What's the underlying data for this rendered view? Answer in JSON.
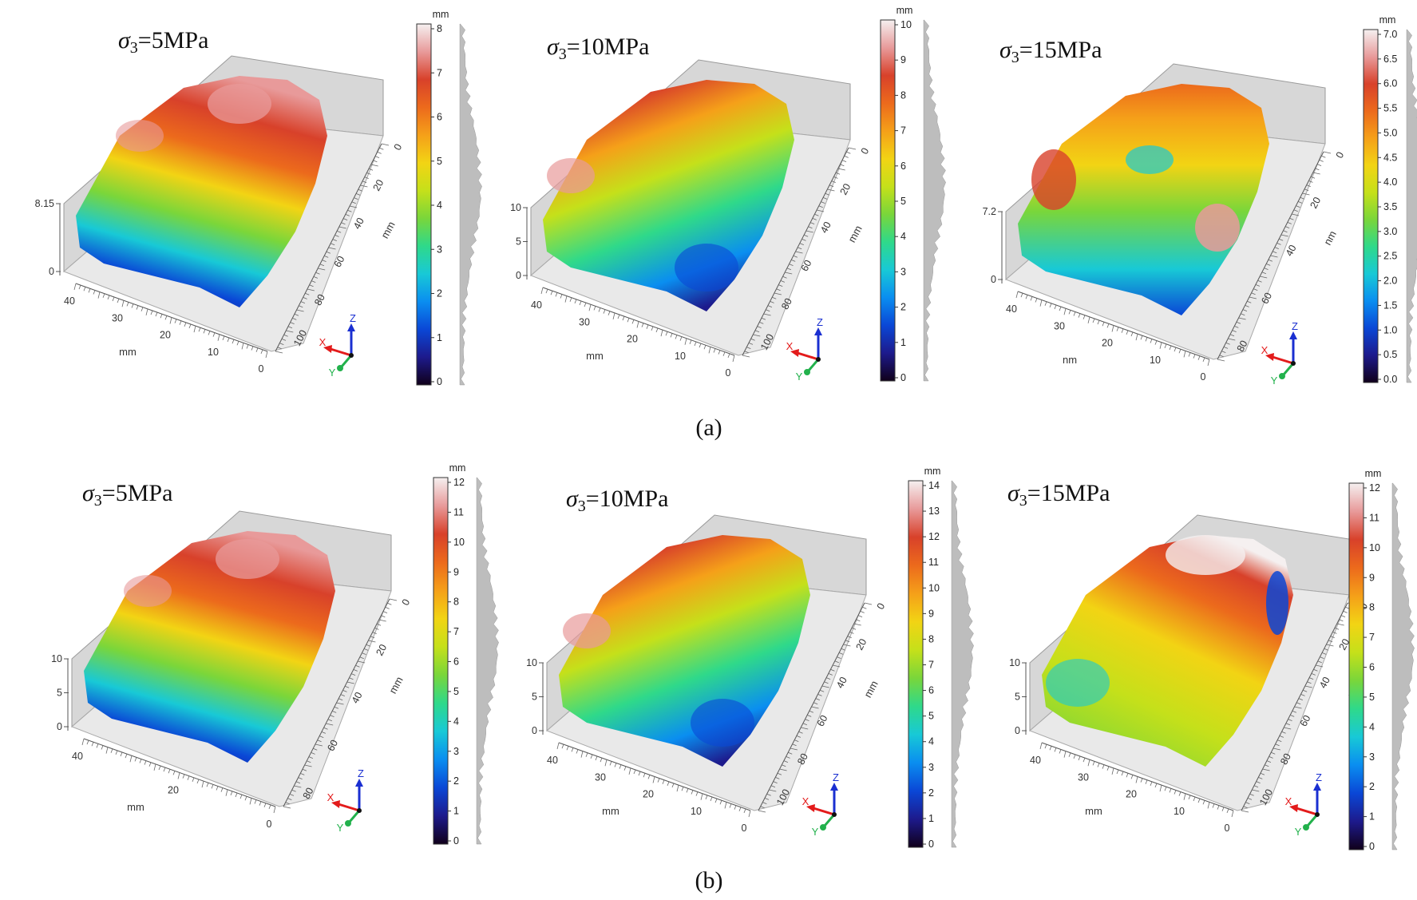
{
  "figure": {
    "row_labels": [
      "(a)",
      "(b)"
    ],
    "panels": [
      {
        "id": "a1",
        "title_sigma": "σ",
        "title_sub": "3",
        "title_rest": "=5MPa",
        "z_axis_labels": [
          "8.15",
          "0"
        ],
        "front_axis_labels": [
          "40",
          "30",
          "20",
          "10",
          "0"
        ],
        "side_axis_labels": [
          "0",
          "20",
          "40",
          "60",
          "80",
          "100"
        ],
        "axis_title_front": "mm",
        "axis_title_side": "mm",
        "colorbar": {
          "unit": "mm",
          "ticks": [
            "8",
            "7",
            "6",
            "5",
            "4",
            "3",
            "2",
            "1",
            "0"
          ]
        },
        "surface_style": "rough",
        "triad": {
          "x": "X",
          "y": "Y",
          "z": "Z"
        }
      },
      {
        "id": "a2",
        "title_sigma": "σ",
        "title_sub": "3",
        "title_rest": "=10MPa",
        "z_axis_labels": [
          "10",
          "5",
          "0"
        ],
        "front_axis_labels": [
          "40",
          "30",
          "20",
          "10",
          "0"
        ],
        "side_axis_labels": [
          "0",
          "20",
          "40",
          "60",
          "80",
          "100"
        ],
        "axis_title_front": "mm",
        "axis_title_side": "mm",
        "colorbar": {
          "unit": "mm",
          "ticks": [
            "10",
            "9",
            "8",
            "7",
            "6",
            "5",
            "4",
            "3",
            "2",
            "1",
            "0"
          ]
        },
        "surface_style": "diagonal",
        "triad": {
          "x": "X",
          "y": "Y",
          "z": "Z"
        }
      },
      {
        "id": "a3",
        "title_sigma": "σ",
        "title_sub": "3",
        "title_rest": "=15MPa",
        "z_axis_labels": [
          "7.2",
          "0"
        ],
        "front_axis_labels": [
          "40",
          "30",
          "20",
          "10",
          "0"
        ],
        "side_axis_labels": [
          "0",
          "20",
          "40",
          "60",
          "80"
        ],
        "axis_title_front": "nm",
        "axis_title_side": "nm",
        "colorbar": {
          "unit": "mm",
          "ticks": [
            "7.0",
            "6.5",
            "6.0",
            "5.5",
            "5.0",
            "4.5",
            "4.0",
            "3.5",
            "3.0",
            "2.5",
            "2.0",
            "1.5",
            "1.0",
            "0.5",
            "0.0"
          ]
        },
        "surface_style": "blobs",
        "triad": {
          "x": "X",
          "y": "Y",
          "z": "Z"
        }
      },
      {
        "id": "b1",
        "title_sigma": "σ",
        "title_sub": "3",
        "title_rest": "=5MPa",
        "z_axis_labels": [
          "10",
          "5",
          "0"
        ],
        "front_axis_labels": [
          "40",
          "20",
          "0"
        ],
        "side_axis_labels": [
          "0",
          "20",
          "40",
          "60",
          "80"
        ],
        "axis_title_front": "mm",
        "axis_title_side": "mm",
        "colorbar": {
          "unit": "mm",
          "ticks": [
            "12",
            "11",
            "10",
            "9",
            "8",
            "7",
            "6",
            "5",
            "4",
            "3",
            "2",
            "1",
            "0"
          ]
        },
        "surface_style": "rough",
        "triad": {
          "x": "X",
          "y": "Y",
          "z": "Z"
        }
      },
      {
        "id": "b2",
        "title_sigma": "σ",
        "title_sub": "3",
        "title_rest": "=10MPa",
        "z_axis_labels": [
          "10",
          "5",
          "0"
        ],
        "front_axis_labels": [
          "40",
          "30",
          "20",
          "10",
          "0"
        ],
        "side_axis_labels": [
          "0",
          "20",
          "40",
          "60",
          "80",
          "100"
        ],
        "axis_title_front": "mm",
        "axis_title_side": "mm",
        "colorbar": {
          "unit": "mm",
          "ticks": [
            "14",
            "13",
            "12",
            "11",
            "10",
            "9",
            "8",
            "7",
            "6",
            "5",
            "4",
            "3",
            "2",
            "1",
            "0"
          ]
        },
        "surface_style": "diagonal",
        "triad": {
          "x": "X",
          "y": "Y",
          "z": "Z"
        }
      },
      {
        "id": "b3",
        "title_sigma": "σ",
        "title_sub": "3",
        "title_rest": "=15MPa",
        "z_axis_labels": [
          "10",
          "5",
          "0"
        ],
        "front_axis_labels": [
          "40",
          "30",
          "20",
          "10",
          "0"
        ],
        "side_axis_labels": [
          "0",
          "20",
          "40",
          "60",
          "80",
          "100"
        ],
        "axis_title_front": "mm",
        "axis_title_side": "mm",
        "colorbar": {
          "unit": "mm",
          "ticks": [
            "12",
            "11",
            "10",
            "9",
            "8",
            "7",
            "6",
            "5",
            "4",
            "3",
            "2",
            "1",
            "0"
          ]
        },
        "surface_style": "ridge",
        "triad": {
          "x": "X",
          "y": "Y",
          "z": "Z"
        }
      }
    ]
  },
  "colors": {
    "jet": [
      "#10001a",
      "#1d1a8c",
      "#0a47d6",
      "#0a8ef0",
      "#18c9d6",
      "#2fd98a",
      "#7ad63a",
      "#c5e01a",
      "#f2d414",
      "#f5a019",
      "#ec6a1c",
      "#d8412a",
      "#e89a9a",
      "#f5f0f0"
    ],
    "wall": "#d7d7d7",
    "wall_dark": "#b9b9b9",
    "floor": "#e9e9e9",
    "triad_x": "#e31b1b",
    "triad_y": "#22b14c",
    "triad_z": "#1a2fd1"
  }
}
